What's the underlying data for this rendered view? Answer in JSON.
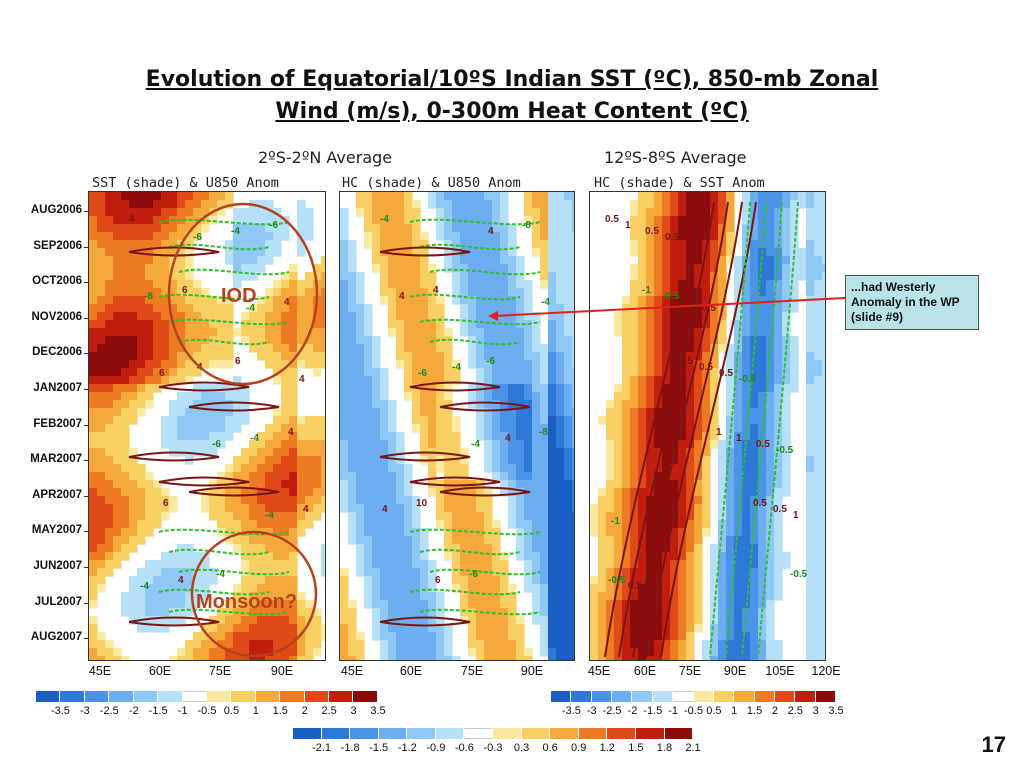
{
  "slide": {
    "title_line1": "Evolution of Equatorial/10ºS Indian SST (ºC), 850-mb Zonal",
    "title_line2": "Wind (m/s), 0-300m Heat Content (ºC)",
    "page_number": "17"
  },
  "chart_data": {
    "type": "heatmap",
    "groups": [
      {
        "title": "2ºS-2ºN  Average"
      },
      {
        "title": "12ºS-8ºS  Average"
      }
    ],
    "y_labels": [
      "AUG2006",
      "SEP2006",
      "OCT2006",
      "NOV2006",
      "DEC2006",
      "JAN2007",
      "FEB2007",
      "MAR2007",
      "APR2007",
      "MAY2007",
      "JUN2007",
      "JUL2007",
      "AUG2007"
    ],
    "panels": [
      {
        "title": "SST (shade) & U850 Anom",
        "x_labels": [
          "45E",
          "60E",
          "75E",
          "90E"
        ],
        "contour_labels": [
          "4",
          "6",
          "6",
          "4",
          "6",
          "-4",
          "-6",
          "-8",
          "4",
          "-4",
          "4",
          "4",
          "-4",
          "4",
          "6",
          "-6",
          "-4",
          "-4",
          "-6",
          "-4",
          "4"
        ]
      },
      {
        "title": "HC (shade) & U850 Anom",
        "x_labels": [
          "45E",
          "60E",
          "75E",
          "90E"
        ],
        "contour_labels": [
          "-4",
          "4",
          "-6",
          "-8",
          "10",
          "-6",
          "-8",
          "4",
          "-4",
          "4",
          "4",
          "6",
          "4",
          "-4",
          "-6",
          "-4"
        ]
      },
      {
        "title": "HC (shade) & SST Anom",
        "x_labels": [
          "45E",
          "60E",
          "75E",
          "90E",
          "105E",
          "120E"
        ],
        "contour_labels": [
          "0.5",
          "-1",
          "0.5",
          "1",
          "0.5",
          "-0.5",
          "1",
          "-0.5",
          "0.5",
          "1",
          "0.5",
          "-0.5",
          "0.5",
          "0.5",
          "0.5",
          "0.5",
          "1",
          "0.5",
          "0.5",
          "0.5",
          "-0.5",
          "-0.5",
          "-1"
        ]
      }
    ],
    "colorbar_sst": {
      "labels": [
        "-3.5",
        "-3",
        "-2.5",
        "-2",
        "-1.5",
        "-1",
        "-0.5",
        "0.5",
        "1",
        "1.5",
        "2",
        "2.5",
        "3",
        "3.5"
      ],
      "colors": [
        "#1c5fc4",
        "#2e78d8",
        "#4b93e6",
        "#6daef0",
        "#8fc8f5",
        "#b6e0f8",
        "#ffffff",
        "#fbe9a0",
        "#f7cf62",
        "#f5a93c",
        "#ef7a24",
        "#e04a18",
        "#c01f10",
        "#8c0c0c"
      ]
    },
    "colorbar_hc": {
      "labels": [
        "-2.1",
        "-1.8",
        "-1.5",
        "-1.2",
        "-0.9",
        "-0.6",
        "-0.3",
        "0.3",
        "0.6",
        "0.9",
        "1.2",
        "1.5",
        "1.8",
        "2.1"
      ],
      "colors": [
        "#1c5fc4",
        "#2e78d8",
        "#4b93e6",
        "#6daef0",
        "#8fc8f5",
        "#b6e0f8",
        "#ffffff",
        "#fbe9a0",
        "#f7cf62",
        "#f5a93c",
        "#ef7a24",
        "#e04a18",
        "#c01f10",
        "#8c0c0c"
      ]
    },
    "annotations": {
      "iod": "IOD",
      "monsoon": "Monsoon?",
      "callout": "...had Westerly Anomaly in the WP (slide #9)"
    }
  }
}
